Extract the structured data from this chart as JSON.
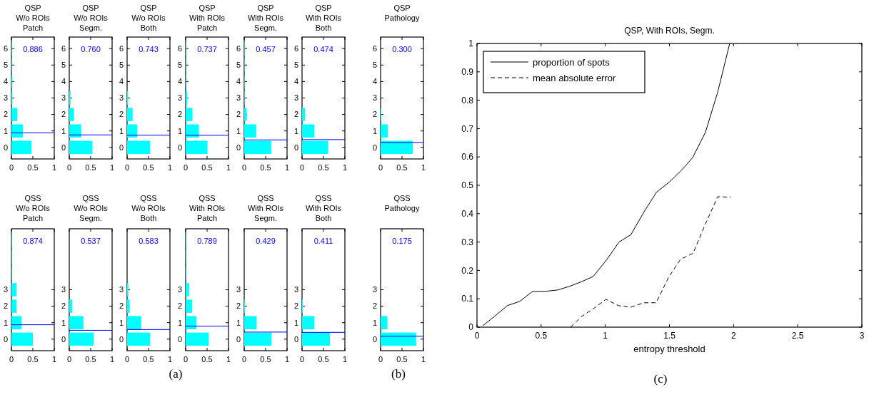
{
  "chart_data": [
    {
      "type": "bar",
      "orientation": "horizontal",
      "title": "QSP\nW/o ROIs\nPatch",
      "x": [
        0,
        1,
        2,
        3,
        4,
        5,
        6
      ],
      "values": [
        0.47,
        0.27,
        0.14,
        0.02,
        0.02,
        0.01,
        0.01
      ],
      "color": "#00ffff",
      "xlim": [
        0,
        1
      ],
      "xticks": [
        0,
        0.5,
        1
      ],
      "ylim": [
        -0.7,
        6.7
      ],
      "yticks": [
        0,
        1,
        2,
        3,
        4,
        5,
        6
      ],
      "ref_lines": [
        {
          "axis": "y",
          "value": 0.886,
          "color": "#0000ff"
        }
      ],
      "annotations": [
        "0.886"
      ]
    },
    {
      "type": "bar",
      "orientation": "horizontal",
      "title": "QSP\nW/o ROIs\nSegm.",
      "x": [
        0,
        1,
        2,
        3,
        4,
        5,
        6
      ],
      "values": [
        0.54,
        0.28,
        0.11,
        0.03,
        0,
        0,
        0
      ],
      "color": "#00ffff",
      "xlim": [
        0,
        1
      ],
      "xticks": [
        0,
        0.5,
        1
      ],
      "ylim": [
        -0.7,
        6.7
      ],
      "yticks": [
        0,
        1,
        2,
        3,
        4,
        5,
        6
      ],
      "ref_lines": [
        {
          "axis": "y",
          "value": 0.76,
          "color": "#0000ff"
        }
      ],
      "annotations": [
        "0.760"
      ]
    },
    {
      "type": "bar",
      "orientation": "horizontal",
      "title": "QSP\nW/o ROIs\nBoth",
      "x": [
        0,
        1,
        2,
        3,
        4,
        5,
        6
      ],
      "values": [
        0.54,
        0.24,
        0.13,
        0.02,
        0,
        0,
        0
      ],
      "color": "#00ffff",
      "xlim": [
        0,
        1
      ],
      "xticks": [
        0,
        0.5,
        1
      ],
      "ylim": [
        -0.7,
        6.7
      ],
      "yticks": [
        0,
        1,
        2,
        3,
        4,
        5,
        6
      ],
      "ref_lines": [
        {
          "axis": "y",
          "value": 0.743,
          "color": "#0000ff"
        }
      ],
      "annotations": [
        "0.743"
      ]
    },
    {
      "type": "bar",
      "orientation": "horizontal",
      "title": "QSP\nWith ROIs\nPatch",
      "x": [
        0,
        1,
        2,
        3,
        4,
        5,
        6
      ],
      "values": [
        0.51,
        0.31,
        0.16,
        0.04,
        0.01,
        0.01,
        0.01
      ],
      "color": "#00ffff",
      "xlim": [
        0,
        1
      ],
      "xticks": [
        0,
        0.5,
        1
      ],
      "ylim": [
        -0.7,
        6.7
      ],
      "yticks": [
        0,
        1,
        2,
        3,
        4,
        5,
        6
      ],
      "ref_lines": [
        {
          "axis": "y",
          "value": 0.737,
          "color": "#0000ff"
        }
      ],
      "annotations": [
        "0.737"
      ]
    },
    {
      "type": "bar",
      "orientation": "horizontal",
      "title": "QSP\nWith ROIs\nSegm.",
      "x": [
        0,
        1,
        2,
        3,
        4,
        5,
        6
      ],
      "values": [
        0.63,
        0.28,
        0.06,
        0.01,
        0.01,
        0.01,
        0.01
      ],
      "color": "#00ffff",
      "xlim": [
        0,
        1
      ],
      "xticks": [
        0,
        0.5,
        1
      ],
      "ylim": [
        -0.7,
        6.7
      ],
      "yticks": [
        0,
        1,
        2,
        3,
        4,
        5,
        6
      ],
      "ref_lines": [
        {
          "axis": "y",
          "value": 0.457,
          "color": "#0000ff"
        }
      ],
      "annotations": [
        "0.457"
      ]
    },
    {
      "type": "bar",
      "orientation": "horizontal",
      "title": "QSP\nWith ROIs\nBoth",
      "x": [
        0,
        1,
        2,
        3,
        4,
        5,
        6
      ],
      "values": [
        0.61,
        0.29,
        0.07,
        0,
        0,
        0,
        0
      ],
      "color": "#00ffff",
      "xlim": [
        0,
        1
      ],
      "xticks": [
        0,
        0.5,
        1
      ],
      "ylim": [
        -0.7,
        6.7
      ],
      "yticks": [
        0,
        1,
        2,
        3,
        4,
        5,
        6
      ],
      "ref_lines": [
        {
          "axis": "y",
          "value": 0.474,
          "color": "#0000ff"
        }
      ],
      "annotations": [
        "0.474"
      ]
    },
    {
      "type": "bar",
      "orientation": "horizontal",
      "title": "QSP\nPathology",
      "x": [
        0,
        1,
        2,
        3,
        4,
        5,
        6
      ],
      "values": [
        0.75,
        0.17,
        0.02,
        0,
        0,
        0,
        0
      ],
      "color": "#00ffff",
      "xlim": [
        0,
        1
      ],
      "xticks": [
        0,
        0.5,
        1
      ],
      "ylim": [
        -0.7,
        6.7
      ],
      "yticks": [
        0,
        1,
        2,
        3,
        4,
        5,
        6
      ],
      "ref_lines": [
        {
          "axis": "y",
          "value": 0.3,
          "color": "#0000ff"
        }
      ],
      "annotations": [
        "0.300"
      ]
    },
    {
      "type": "bar",
      "orientation": "horizontal",
      "title": "QSS\nW/o ROIs\nPatch",
      "x": [
        0,
        1,
        2,
        3,
        4,
        5,
        6
      ],
      "values": [
        0.5,
        0.24,
        0.12,
        0.12,
        0.01,
        0.01,
        0.01
      ],
      "color": "#00ffff",
      "xlim": [
        0,
        1
      ],
      "xticks": [
        0,
        0.5,
        1
      ],
      "ylim": [
        -0.7,
        6.7
      ],
      "yticks": [
        0,
        1,
        2,
        3
      ],
      "ref_lines": [
        {
          "axis": "y",
          "value": 0.874,
          "color": "#0000ff"
        }
      ],
      "annotations": [
        "0.874"
      ]
    },
    {
      "type": "bar",
      "orientation": "horizontal",
      "title": "QSS\nW/o ROIs\nSegm.",
      "x": [
        0,
        1,
        2,
        3,
        4,
        5,
        6
      ],
      "values": [
        0.57,
        0.33,
        0.07,
        0,
        0,
        0,
        0
      ],
      "color": "#00ffff",
      "xlim": [
        0,
        1
      ],
      "xticks": [
        0,
        0.5,
        1
      ],
      "ylim": [
        -0.7,
        6.7
      ],
      "yticks": [
        0,
        1,
        2,
        3
      ],
      "ref_lines": [
        {
          "axis": "y",
          "value": 0.537,
          "color": "#0000ff"
        }
      ],
      "annotations": [
        "0.537"
      ]
    },
    {
      "type": "bar",
      "orientation": "horizontal",
      "title": "QSS\nW/o ROIs\nBoth",
      "x": [
        0,
        1,
        2,
        3,
        4,
        5,
        6
      ],
      "values": [
        0.54,
        0.33,
        0.06,
        0.03,
        0,
        0,
        0
      ],
      "color": "#00ffff",
      "xlim": [
        0,
        1
      ],
      "xticks": [
        0,
        0.5,
        1
      ],
      "ylim": [
        -0.7,
        6.7
      ],
      "yticks": [
        0,
        1,
        2,
        3
      ],
      "ref_lines": [
        {
          "axis": "y",
          "value": 0.583,
          "color": "#0000ff"
        }
      ],
      "annotations": [
        "0.583"
      ]
    },
    {
      "type": "bar",
      "orientation": "horizontal",
      "title": "QSS\nWith ROIs\nPatch",
      "x": [
        0,
        1,
        2,
        3,
        4,
        5,
        6
      ],
      "values": [
        0.54,
        0.25,
        0.15,
        0.08,
        0.01,
        0.01,
        0.01
      ],
      "color": "#00ffff",
      "xlim": [
        0,
        1
      ],
      "xticks": [
        0,
        0.5,
        1
      ],
      "ylim": [
        -0.7,
        6.7
      ],
      "yticks": [
        0,
        1,
        2,
        3
      ],
      "ref_lines": [
        {
          "axis": "y",
          "value": 0.789,
          "color": "#0000ff"
        }
      ],
      "annotations": [
        "0.789",
        "(a)"
      ]
    },
    {
      "type": "bar",
      "orientation": "horizontal",
      "title": "QSS\nWith ROIs\nSegm.",
      "x": [
        0,
        1,
        2,
        3,
        4,
        5,
        6
      ],
      "values": [
        0.64,
        0.29,
        0.02,
        0,
        0,
        0,
        0
      ],
      "color": "#00ffff",
      "xlim": [
        0,
        1
      ],
      "xticks": [
        0,
        0.5,
        1
      ],
      "ylim": [
        -0.7,
        6.7
      ],
      "yticks": [
        0,
        1,
        2,
        3
      ],
      "ref_lines": [
        {
          "axis": "y",
          "value": 0.429,
          "color": "#0000ff"
        }
      ],
      "annotations": [
        "0.429"
      ]
    },
    {
      "type": "bar",
      "orientation": "horizontal",
      "title": "QSS\nWith ROIs\nBoth",
      "x": [
        0,
        1,
        2,
        3,
        4,
        5,
        6
      ],
      "values": [
        0.65,
        0.29,
        0.02,
        0,
        0,
        0,
        0
      ],
      "color": "#00ffff",
      "xlim": [
        0,
        1
      ],
      "xticks": [
        0,
        0.5,
        1
      ],
      "ylim": [
        -0.7,
        6.7
      ],
      "yticks": [
        0,
        1,
        2,
        3
      ],
      "ref_lines": [
        {
          "axis": "y",
          "value": 0.411,
          "color": "#0000ff"
        }
      ],
      "annotations": [
        "0.411"
      ]
    },
    {
      "type": "bar",
      "orientation": "horizontal",
      "title": "QSS\nPathology",
      "x": [
        0,
        1,
        2,
        3,
        4,
        5,
        6
      ],
      "values": [
        0.83,
        0.16,
        0,
        0,
        0,
        0,
        0
      ],
      "color": "#00ffff",
      "xlim": [
        0,
        1
      ],
      "xticks": [
        0,
        0.5,
        1
      ],
      "ylim": [
        -0.7,
        6.7
      ],
      "yticks": [
        0,
        1,
        2,
        3
      ],
      "ref_lines": [
        {
          "axis": "y",
          "value": 0.175,
          "color": "#0000ff"
        }
      ],
      "annotations": [
        "0.175",
        "(b)"
      ]
    },
    {
      "type": "line",
      "title": "QSP, With ROIs, Segm.",
      "xlabel": "entropy threshold",
      "xlim": [
        0,
        3
      ],
      "xticks": [
        0,
        0.5,
        1,
        1.5,
        2,
        2.5,
        3
      ],
      "ylim": [
        0,
        1
      ],
      "yticks": [
        0,
        0.1,
        0.2,
        0.3,
        0.4,
        0.5,
        0.6,
        0.7,
        0.8,
        0.9,
        1
      ],
      "legend": "top left",
      "annotations": [
        "(c)"
      ],
      "series": [
        {
          "name": "proportion of spots",
          "color": "#000000",
          "line_style": "solid",
          "x": [
            0.045,
            0.134,
            0.237,
            0.334,
            0.433,
            0.526,
            0.629,
            0.722,
            0.814,
            0.907,
            1.01,
            1.107,
            1.2,
            1.3,
            1.4,
            1.5,
            1.59,
            1.68,
            1.78,
            1.876,
            1.97
          ],
          "values": [
            0.005,
            0.037,
            0.076,
            0.091,
            0.126,
            0.126,
            0.131,
            0.144,
            0.16,
            0.179,
            0.237,
            0.3,
            0.326,
            0.405,
            0.476,
            0.512,
            0.551,
            0.597,
            0.686,
            0.828,
            1.0
          ]
        },
        {
          "name": "mean absolute error",
          "color": "#000000",
          "line_style": "dashed",
          "x": [
            0.73,
            0.814,
            0.907,
            1.006,
            1.103,
            1.196,
            1.3,
            1.396,
            1.495,
            1.588,
            1.684,
            1.78,
            1.876,
            1.98
          ],
          "values": [
            0,
            0.037,
            0.065,
            0.098,
            0.076,
            0.07,
            0.086,
            0.086,
            0.177,
            0.24,
            0.26,
            0.363,
            0.46,
            0.458
          ]
        }
      ]
    }
  ]
}
